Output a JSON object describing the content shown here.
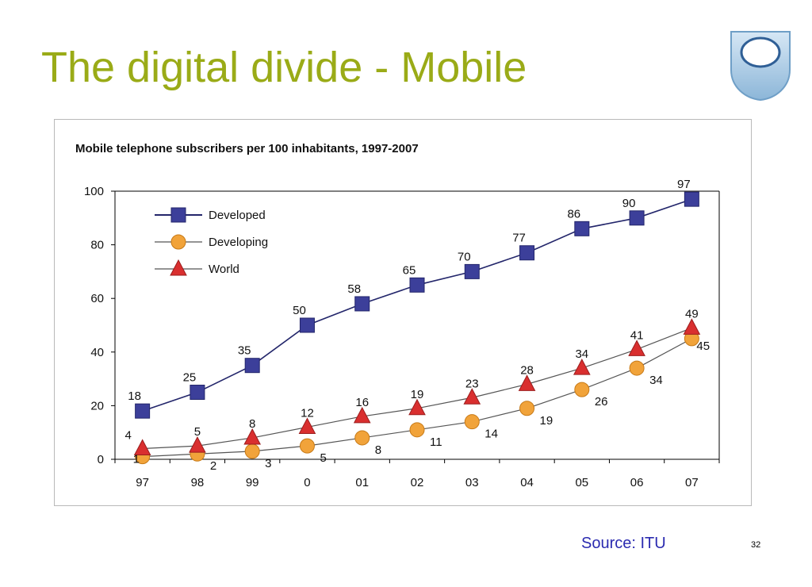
{
  "slide": {
    "title": "The digital divide - Mobile",
    "source": "Source: ITU",
    "page_number": "32",
    "title_color": "#9aab17",
    "source_color": "#2b2bb0",
    "logo_icon": "open-university-shield-icon"
  },
  "chart_data": {
    "type": "line",
    "title": "Mobile telephone subscribers per 100 inhabitants, 1997-2007",
    "xlabel": "",
    "ylabel": "",
    "categories": [
      "97",
      "98",
      "99",
      "0",
      "01",
      "02",
      "03",
      "04",
      "05",
      "06",
      "07"
    ],
    "ylim": [
      0,
      100
    ],
    "yticks": [
      "0",
      "20",
      "40",
      "60",
      "80",
      "100"
    ],
    "grid": false,
    "legend_position": "top-left",
    "series": [
      {
        "name": "Developed",
        "marker": "square",
        "color": "#3c3f9a",
        "values": [
          18,
          25,
          35,
          50,
          58,
          65,
          70,
          77,
          86,
          90,
          97
        ],
        "labels": [
          "18",
          "25",
          "35",
          "50",
          "58",
          "65",
          "70",
          "77",
          "86",
          "90",
          "97"
        ]
      },
      {
        "name": "Developing",
        "marker": "circle",
        "color": "#f1a33a",
        "values": [
          1,
          2,
          3,
          5,
          8,
          11,
          14,
          19,
          26,
          34,
          45
        ],
        "labels": [
          "1",
          "2",
          "3",
          "5",
          "8",
          "11",
          "14",
          "19",
          "26",
          "34",
          "45"
        ]
      },
      {
        "name": "World",
        "marker": "triangle",
        "color": "#d92f2f",
        "values": [
          4,
          5,
          8,
          12,
          16,
          19,
          23,
          28,
          34,
          41,
          49
        ],
        "labels": [
          "4",
          "5",
          "8",
          "12",
          "16",
          "19",
          "23",
          "28",
          "34",
          "41",
          "49"
        ]
      }
    ]
  }
}
